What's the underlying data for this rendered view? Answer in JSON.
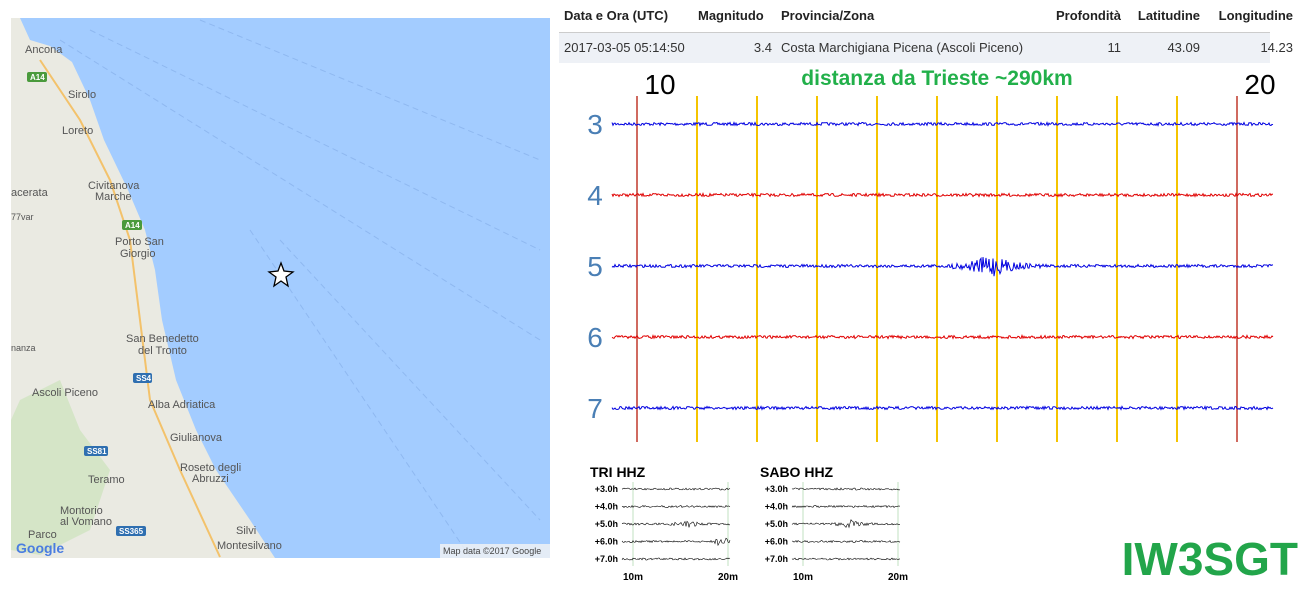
{
  "map": {
    "places": [
      "Ancona",
      "Sirolo",
      "Loreto",
      "acerata",
      "Civitanova",
      "Marche",
      "Porto San",
      "Giorgio",
      "77var",
      "San Benedetto",
      "del Tronto",
      "nanza",
      "Ascoli Piceno",
      "Alba Adriatica",
      "Giulianova",
      "Roseto degli",
      "Abruzzi",
      "Teramo",
      "Montorio",
      "al Vomano",
      "Parco",
      "Silvi",
      "Montesilvano"
    ],
    "roads": [
      "A14",
      "A14",
      "SS4",
      "SS81",
      "SS365"
    ],
    "logo": "Google",
    "attribution": "Map data ©2017 Google"
  },
  "table": {
    "columns": [
      "Data e Ora (UTC)",
      "Magnitudo",
      "Provincia/Zona",
      "Profondità",
      "Latitudine",
      "Longitudine"
    ],
    "rows": [
      [
        "2017-03-05 05:14:50",
        3.4,
        "Costa Marchigiana Picena (Ascoli Piceno)",
        11,
        43.09,
        14.23
      ]
    ]
  },
  "seismogram": {
    "start_label": "10",
    "end_label": "20",
    "title": "distanza da Trieste ~290km",
    "hours": [
      "3",
      "4",
      "5",
      "6",
      "7"
    ]
  },
  "stations": [
    {
      "name": "TRI HHZ",
      "hours": [
        "+3.0h",
        "+4.0h",
        "+5.0h",
        "+6.0h",
        "+7.0h"
      ],
      "x_labels": [
        "10m",
        "20m"
      ]
    },
    {
      "name": "SABO HHZ",
      "hours": [
        "+3.0h",
        "+4.0h",
        "+5.0h",
        "+6.0h",
        "+7.0h"
      ],
      "x_labels": [
        "10m",
        "20m"
      ]
    }
  ],
  "callsign": "IW3SGT"
}
